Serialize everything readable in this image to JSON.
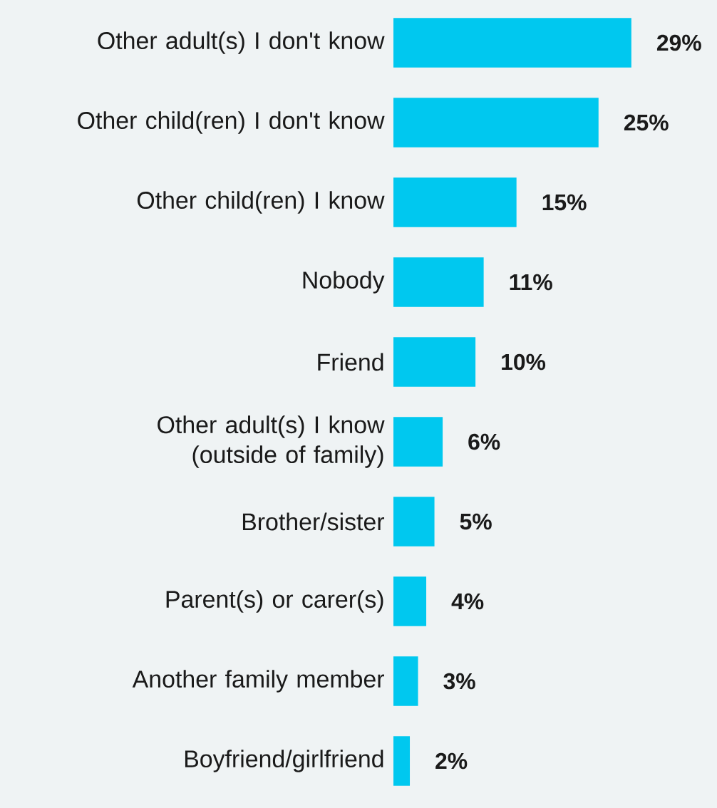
{
  "chart_data": {
    "type": "bar",
    "orientation": "horizontal",
    "categories": [
      "Other adult(s) I don't know",
      "Other child(ren) I don't know",
      "Other child(ren) I know",
      "Nobody",
      "Friend",
      "Other adult(s) I know (outside of family)",
      "Brother/sister",
      "Parent(s) or carer(s)",
      "Another family member",
      "Boyfriend/girlfriend"
    ],
    "values": [
      29,
      25,
      15,
      11,
      10,
      6,
      5,
      4,
      3,
      2
    ],
    "value_labels": [
      "29%",
      "25%",
      "15%",
      "11%",
      "10%",
      "6%",
      "5%",
      "4%",
      "3%",
      "2%"
    ],
    "color": "#00c8ef"
  }
}
